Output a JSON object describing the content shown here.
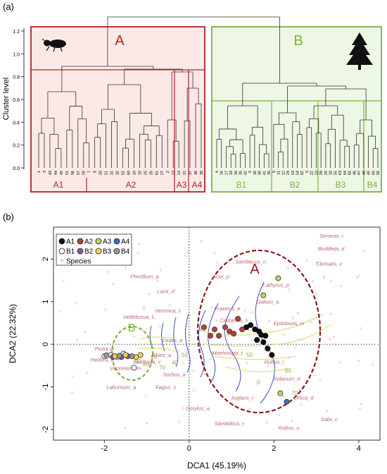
{
  "panel_a": {
    "label": "(a)",
    "y_axis_label": "Cluster level",
    "y_ticks": [
      "0.0",
      "0.2",
      "0.4",
      "0.6",
      "0.8",
      "1.0",
      "1.2"
    ],
    "cluster_A": {
      "label": "A",
      "color": "#b22222",
      "fill": "#fbe9e7"
    },
    "cluster_B": {
      "label": "B",
      "color": "#7cb342",
      "fill": "#eef6e4"
    },
    "leaves_A": [
      "1",
      "3",
      "43",
      "44",
      "45",
      "51",
      "56",
      "57",
      "59",
      "7",
      "8",
      "20",
      "21",
      "31",
      "32",
      "52",
      "60",
      "10",
      "19",
      "25",
      "26",
      "61",
      "27",
      "2",
      "13",
      "14",
      "15",
      "37",
      "38",
      "39"
    ],
    "leaves_B": [
      "4",
      "16",
      "17",
      "18",
      "34",
      "35",
      "42",
      "6",
      "30",
      "40",
      "41",
      "36",
      "9",
      "11",
      "12",
      "24",
      "53",
      "54",
      "62",
      "5",
      "22",
      "23",
      "28",
      "29",
      "33",
      "55",
      "63",
      "64",
      "65",
      "46",
      "47",
      "48",
      "49",
      "50",
      "58"
    ],
    "subclusters_A": [
      "A1",
      "A2",
      "A3",
      "A4"
    ],
    "subclusters_B": [
      "B1",
      "B2",
      "B3",
      "B4"
    ],
    "icon_A": "beetle-icon",
    "icon_B": "conifer-tree-icon"
  },
  "panel_b": {
    "label": "(b)",
    "x_axis_label": "DCA1 (45.19%)",
    "y_axis_label": "DCA2 (22.32%)",
    "x_ticks": [
      "-2",
      "0",
      "2",
      "4"
    ],
    "y_ticks": [
      "-2",
      "-1",
      "0",
      "1",
      "2"
    ],
    "ellipse_A_label": "A",
    "ellipse_B_label": "B",
    "contour_labels": [
      "40",
      "50",
      "60",
      "70",
      "80",
      "90",
      "40",
      "50",
      "60",
      "70",
      "0"
    ],
    "legend": [
      {
        "label": "A1",
        "color": "#111111"
      },
      {
        "label": "A2",
        "color": "#b5413e"
      },
      {
        "label": "A3",
        "color": "#b7d65a"
      },
      {
        "label": "A4",
        "color": "#3f6ec3"
      },
      {
        "label": "B1",
        "color": "#e6f4f4"
      },
      {
        "label": "B2",
        "color": "#8a55b0"
      },
      {
        "label": "B3",
        "color": "#efd64a"
      },
      {
        "label": "B4",
        "color": "#9a9a9a"
      },
      {
        "label": "Species",
        "color": "#e0a0a8"
      }
    ],
    "species": [
      {
        "name": "Senecio_i",
        "x": 3.35,
        "y": 2.5
      },
      {
        "name": "Buddleja_d",
        "x": 3.35,
        "y": 2.2
      },
      {
        "name": "Clematis_v",
        "x": 3.3,
        "y": 1.85
      },
      {
        "name": "Sambucus_n",
        "x": 1.45,
        "y": 1.9
      },
      {
        "name": "Pteridium_a",
        "x": -1.05,
        "y": 1.55
      },
      {
        "name": "Acer_p",
        "x": 0.75,
        "y": 1.55
      },
      {
        "name": "Lathyrus_p",
        "x": 2.05,
        "y": 1.35
      },
      {
        "name": "Larix_d",
        "x": -0.55,
        "y": 1.2
      },
      {
        "name": "Veronica_c",
        "x": -0.5,
        "y": 0.75
      },
      {
        "name": "Fraxinus_e",
        "x": 0.9,
        "y": 0.8
      },
      {
        "name": "Galium_a",
        "x": 1.85,
        "y": 0.95
      },
      {
        "name": "Castanea_s",
        "x": 1.05,
        "y": 0.52
      },
      {
        "name": "Epilobium_m",
        "x": 2.35,
        "y": 0.45
      },
      {
        "name": "Helleborus_f",
        "x": -1.2,
        "y": 0.6
      },
      {
        "name": "Oxalis_a",
        "x": -0.4,
        "y": 0.05
      },
      {
        "name": "Picea_a",
        "x": -2.0,
        "y": -0.15
      },
      {
        "name": "Abies_a",
        "x": -0.65,
        "y": -0.3
      },
      {
        "name": "Moehringia_t",
        "x": 0.9,
        "y": -0.25
      },
      {
        "name": "Hedera_h",
        "x": -2.05,
        "y": -0.4
      },
      {
        "name": "Saxifraga_c",
        "x": -1.0,
        "y": -0.45
      },
      {
        "name": "Rubus_i",
        "x": 2.0,
        "y": -0.45
      },
      {
        "name": "Vaccinium_m",
        "x": -1.5,
        "y": -0.6
      },
      {
        "name": "Sorbus_a",
        "x": -0.35,
        "y": -0.75
      },
      {
        "name": "Solanum_d",
        "x": 2.3,
        "y": -0.85
      },
      {
        "name": "Laburnum_a",
        "x": -1.6,
        "y": -1.05
      },
      {
        "name": "Fagus_s",
        "x": -0.55,
        "y": -1.05
      },
      {
        "name": "Juglans_r",
        "x": 1.25,
        "y": -1.3
      },
      {
        "name": "Urtica_d",
        "x": 2.7,
        "y": -1.3
      },
      {
        "name": "Corylus_a",
        "x": 0.2,
        "y": -1.55
      },
      {
        "name": "Sambucus_r",
        "x": 0.95,
        "y": -1.9
      },
      {
        "name": "Salix_c",
        "x": 3.3,
        "y": -1.8
      },
      {
        "name": "Rubus_u",
        "x": 2.35,
        "y": -2.0
      }
    ],
    "sites": [
      {
        "group": "A1",
        "x": 1.35,
        "y": 0.4
      },
      {
        "group": "A1",
        "x": 1.45,
        "y": 0.45
      },
      {
        "group": "A1",
        "x": 1.55,
        "y": 0.35
      },
      {
        "group": "A1",
        "x": 1.65,
        "y": 0.3
      },
      {
        "group": "A1",
        "x": 1.8,
        "y": 0.2
      },
      {
        "group": "A1",
        "x": 1.75,
        "y": 0.05
      },
      {
        "group": "A1",
        "x": 1.6,
        "y": 0.1
      },
      {
        "group": "A1",
        "x": 1.85,
        "y": -0.1
      },
      {
        "group": "A1",
        "x": 1.95,
        "y": -0.25
      },
      {
        "group": "A1",
        "x": 1.7,
        "y": 0.22
      },
      {
        "group": "A2",
        "x": 0.35,
        "y": 0.4
      },
      {
        "group": "A2",
        "x": 0.6,
        "y": 0.35
      },
      {
        "group": "A2",
        "x": 0.7,
        "y": 0.2
      },
      {
        "group": "A2",
        "x": 0.85,
        "y": 0.4
      },
      {
        "group": "A2",
        "x": 0.95,
        "y": 0.3
      },
      {
        "group": "A2",
        "x": 1.05,
        "y": 0.25
      },
      {
        "group": "A2",
        "x": 1.15,
        "y": 0.6
      },
      {
        "group": "A2",
        "x": 1.25,
        "y": 0.35
      },
      {
        "group": "A2",
        "x": 0.5,
        "y": 0.2
      },
      {
        "group": "A3",
        "x": 2.1,
        "y": 1.55
      },
      {
        "group": "A3",
        "x": 1.75,
        "y": 1.15
      },
      {
        "group": "A3",
        "x": 2.15,
        "y": -1.15
      },
      {
        "group": "A4",
        "x": 2.3,
        "y": -1.35
      },
      {
        "group": "B1",
        "x": -2.0,
        "y": -0.28
      },
      {
        "group": "B1",
        "x": -1.85,
        "y": -0.25
      },
      {
        "group": "B1",
        "x": -1.7,
        "y": -0.3
      },
      {
        "group": "B1",
        "x": -1.55,
        "y": -0.22
      },
      {
        "group": "B1",
        "x": -1.3,
        "y": -0.55
      },
      {
        "group": "B2",
        "x": -1.8,
        "y": -0.3
      },
      {
        "group": "B2",
        "x": -1.6,
        "y": -0.3
      },
      {
        "group": "B2",
        "x": -1.45,
        "y": -0.28
      },
      {
        "group": "B3",
        "x": -1.75,
        "y": -0.28
      },
      {
        "group": "B3",
        "x": -1.5,
        "y": -0.25
      },
      {
        "group": "B3",
        "x": -1.25,
        "y": -0.3
      },
      {
        "group": "B3",
        "x": -1.15,
        "y": -0.25
      },
      {
        "group": "B4",
        "x": -1.95,
        "y": -0.26
      },
      {
        "group": "B4",
        "x": -1.65,
        "y": -0.27
      },
      {
        "group": "B4",
        "x": -1.35,
        "y": -0.28
      }
    ]
  }
}
